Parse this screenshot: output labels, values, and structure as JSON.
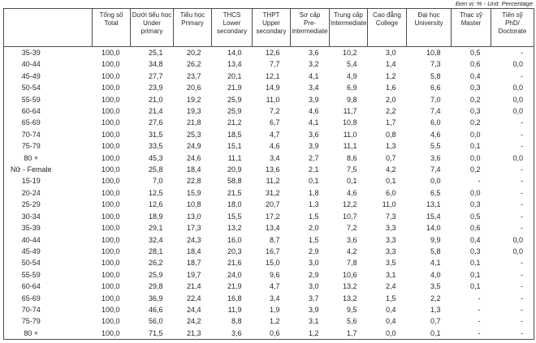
{
  "unit_label": "Đơn vị: % - Unit: Percentage",
  "colors": {
    "background": "#ffffff",
    "text": "#262626",
    "border": "#4d4d4d"
  },
  "table": {
    "columns": [
      {
        "key": "age-group",
        "vi": "",
        "en": ""
      },
      {
        "key": "total",
        "vi": "Tổng số",
        "en": "Total"
      },
      {
        "key": "under-primary",
        "vi": "Dưới tiểu học",
        "en": "Under\nprimary"
      },
      {
        "key": "primary",
        "vi": "Tiểu học",
        "en": "Primary"
      },
      {
        "key": "lower-secondary",
        "vi": "THCS",
        "en": "Lower\nsecondary"
      },
      {
        "key": "upper-secondary",
        "vi": "THPT",
        "en": "Upper\nsecondary"
      },
      {
        "key": "pre-intermediate",
        "vi": "Sơ cấp",
        "en": "Pre-\nintermediate"
      },
      {
        "key": "intermediate",
        "vi": "Trung cấp",
        "en": "Intermediate"
      },
      {
        "key": "college",
        "vi": "Cao đẳng",
        "en": "College"
      },
      {
        "key": "university",
        "vi": "Đại học",
        "en": "University"
      },
      {
        "key": "master",
        "vi": "Thạc sỹ",
        "en": "Master"
      },
      {
        "key": "phd",
        "vi": "Tiến sỹ",
        "en": "PhD/\nDoctorate"
      }
    ],
    "rows": [
      {
        "label": "35-39",
        "values": [
          "100,0",
          "25,1",
          "20,2",
          "14,0",
          "12,6",
          "3,6",
          "10,2",
          "3,0",
          "10,8",
          "0,5",
          "-"
        ]
      },
      {
        "label": "40-44",
        "values": [
          "100,0",
          "34,8",
          "26,2",
          "13,4",
          "7,7",
          "3,2",
          "5,4",
          "1,4",
          "7,3",
          "0,6",
          "0,0"
        ]
      },
      {
        "label": "45-49",
        "values": [
          "100,0",
          "27,7",
          "23,7",
          "20,1",
          "12,1",
          "4,1",
          "4,9",
          "1,2",
          "5,8",
          "0,4",
          "-"
        ]
      },
      {
        "label": "50-54",
        "values": [
          "100,0",
          "23,9",
          "20,6",
          "21,9",
          "14,9",
          "3,4",
          "6,9",
          "1,6",
          "6,6",
          "0,3",
          "0,0"
        ]
      },
      {
        "label": "55-59",
        "values": [
          "100,0",
          "21,0",
          "19,2",
          "25,9",
          "11,0",
          "3,9",
          "9,8",
          "2,0",
          "7,0",
          "0,2",
          "0,0"
        ]
      },
      {
        "label": "60-64",
        "values": [
          "100,0",
          "21,4",
          "19,3",
          "25,9",
          "7,2",
          "4,6",
          "11,7",
          "2,2",
          "7,4",
          "0,3",
          "0,0"
        ]
      },
      {
        "label": "65-69",
        "values": [
          "100,0",
          "27,6",
          "21,8",
          "21,2",
          "6,7",
          "4,1",
          "10,8",
          "1,7",
          "6,0",
          "0,2",
          "-"
        ]
      },
      {
        "label": "70-74",
        "values": [
          "100,0",
          "31,5",
          "25,3",
          "18,5",
          "4,7",
          "3,6",
          "11,0",
          "0,8",
          "4,6",
          "0,0",
          "-"
        ]
      },
      {
        "label": "75-79",
        "values": [
          "100,0",
          "33,5",
          "24,9",
          "15,1",
          "4,6",
          "3,9",
          "11,1",
          "1,3",
          "5,5",
          "0,1",
          "-"
        ]
      },
      {
        "label": "80 +",
        "values": [
          "100,0",
          "45,3",
          "24,6",
          "11,1",
          "3,4",
          "2,7",
          "8,6",
          "0,7",
          "3,6",
          "0,0",
          "0,0"
        ]
      },
      {
        "label": "Nữ - Female",
        "values": [
          "100,0",
          "25,8",
          "18,4",
          "20,9",
          "13,6",
          "2,1",
          "7,5",
          "4,2",
          "7,4",
          "0,2",
          "-"
        ]
      },
      {
        "label": "15-19",
        "values": [
          "100,0",
          "7,0",
          "22,8",
          "58,8",
          "11,2",
          "0,1",
          "0,1",
          "0,1",
          "0,0",
          "-",
          "-"
        ]
      },
      {
        "label": "20-24",
        "values": [
          "100,0",
          "12,5",
          "15,9",
          "21,5",
          "31,2",
          "1,8",
          "4,6",
          "6,0",
          "6,5",
          "0,0",
          "-"
        ]
      },
      {
        "label": "25-29",
        "values": [
          "100,0",
          "12,6",
          "10,8",
          "18,0",
          "20,7",
          "1,3",
          "12,2",
          "11,0",
          "13,1",
          "0,3",
          "-"
        ]
      },
      {
        "label": "30-34",
        "values": [
          "100,0",
          "18,9",
          "13,0",
          "15,5",
          "17,2",
          "1,5",
          "10,7",
          "7,3",
          "15,4",
          "0,5",
          "-"
        ]
      },
      {
        "label": "35-39",
        "values": [
          "100,0",
          "29,1",
          "17,3",
          "13,2",
          "13,4",
          "2,0",
          "7,2",
          "3,3",
          "14,0",
          "0,6",
          "-"
        ]
      },
      {
        "label": "40-44",
        "values": [
          "100,0",
          "32,4",
          "24,3",
          "16,0",
          "8,7",
          "1,5",
          "3,6",
          "3,3",
          "9,9",
          "0,4",
          "0,0"
        ]
      },
      {
        "label": "45-49",
        "values": [
          "100,0",
          "28,1",
          "18,4",
          "20,3",
          "16,7",
          "2,9",
          "4,2",
          "3,3",
          "5,8",
          "0,3",
          "0,0"
        ]
      },
      {
        "label": "50-54",
        "values": [
          "100,0",
          "26,2",
          "18,7",
          "21,6",
          "15,0",
          "3,0",
          "7,8",
          "3,5",
          "4,1",
          "0,1",
          "-"
        ]
      },
      {
        "label": "55-59",
        "values": [
          "100,0",
          "25,9",
          "19,7",
          "24,0",
          "9,6",
          "2,9",
          "10,6",
          "3,1",
          "4,0",
          "0,1",
          "-"
        ]
      },
      {
        "label": "60-64",
        "values": [
          "100,0",
          "29,8",
          "21,4",
          "21,9",
          "4,7",
          "3,0",
          "13,2",
          "2,4",
          "3,5",
          "0,1",
          "-"
        ]
      },
      {
        "label": "65-69",
        "values": [
          "100,0",
          "36,9",
          "22,4",
          "16,8",
          "3,4",
          "3,7",
          "13,2",
          "1,5",
          "2,2",
          "-",
          "-"
        ]
      },
      {
        "label": "70-74",
        "values": [
          "100,0",
          "46,6",
          "24,4",
          "11,9",
          "1,9",
          "3,9",
          "9,5",
          "0,4",
          "1,3",
          "-",
          "-"
        ]
      },
      {
        "label": "75-79",
        "values": [
          "100,0",
          "56,0",
          "24,2",
          "8,8",
          "1,2",
          "3,1",
          "5,6",
          "0,4",
          "0,7",
          "-",
          "-"
        ]
      },
      {
        "label": "80 +",
        "values": [
          "100,0",
          "71,5",
          "21,3",
          "3,6",
          "0,6",
          "1,2",
          "1,7",
          "0,0",
          "0,1",
          "-",
          "-"
        ]
      }
    ]
  }
}
